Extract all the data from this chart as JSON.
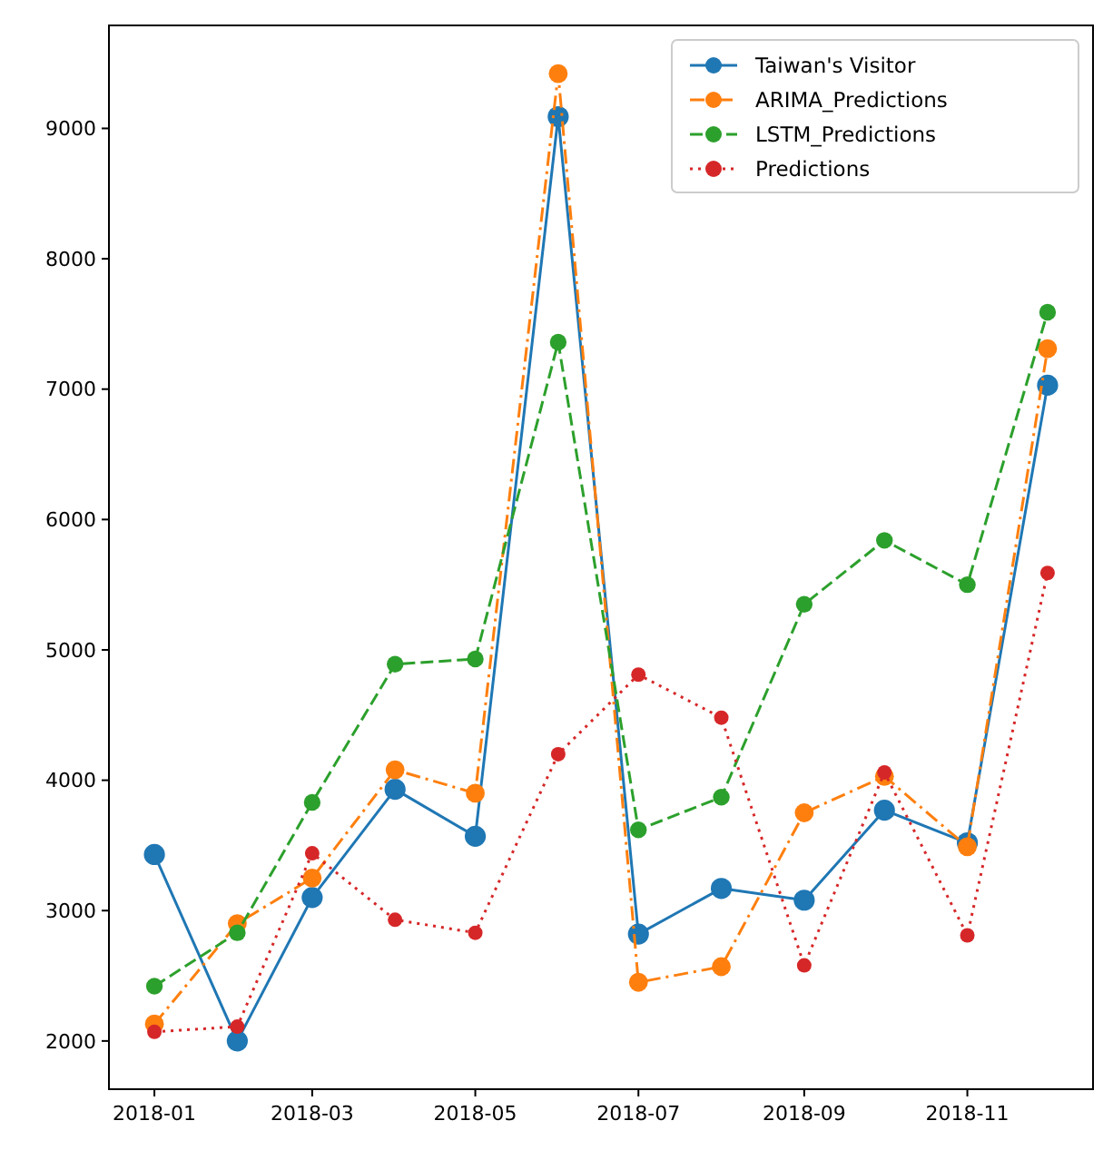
{
  "chart_data": {
    "type": "line",
    "x": [
      "2018-01",
      "2018-02",
      "2018-03",
      "2018-04",
      "2018-05",
      "2018-06",
      "2018-07",
      "2018-08",
      "2018-09",
      "2018-10",
      "2018-11",
      "2018-12"
    ],
    "xlim": [
      "2017-12-15",
      "2018-12-18"
    ],
    "xticks": [
      {
        "value": "2018-01",
        "label": "2018-01"
      },
      {
        "value": "2018-03",
        "label": "2018-03"
      },
      {
        "value": "2018-05",
        "label": "2018-05"
      },
      {
        "value": "2018-07",
        "label": "2018-07"
      },
      {
        "value": "2018-09",
        "label": "2018-09"
      },
      {
        "value": "2018-11",
        "label": "2018-11"
      }
    ],
    "ylim": [
      1630,
      9790
    ],
    "yticks": [
      2000,
      3000,
      4000,
      5000,
      6000,
      7000,
      8000,
      9000
    ],
    "marker": "circle",
    "legend": "top right",
    "grid": false,
    "series": [
      {
        "name": "Taiwan's Visitor",
        "color": "#1f77b4",
        "line_style": "solid",
        "values": [
          3430,
          2000,
          3100,
          3930,
          3570,
          9090,
          2820,
          3170,
          3080,
          3770,
          3520,
          7030
        ]
      },
      {
        "name": "ARIMA_Predictions",
        "color": "#ff7f0e",
        "line_style": "dashdot",
        "values": [
          2130,
          2900,
          3250,
          4080,
          3900,
          9420,
          2450,
          2570,
          3750,
          4030,
          3490,
          7310
        ]
      },
      {
        "name": "LSTM_Predictions",
        "color": "#2ca02c",
        "line_style": "dashed",
        "values": [
          2420,
          2830,
          3830,
          4890,
          4930,
          7360,
          3620,
          3870,
          5350,
          5840,
          5500,
          7590
        ]
      },
      {
        "name": "Predictions",
        "color": "#d62728",
        "line_style": "dotted",
        "values": [
          2070,
          2110,
          3440,
          2930,
          2830,
          4200,
          4810,
          4480,
          2580,
          4060,
          2810,
          5590
        ]
      }
    ]
  }
}
